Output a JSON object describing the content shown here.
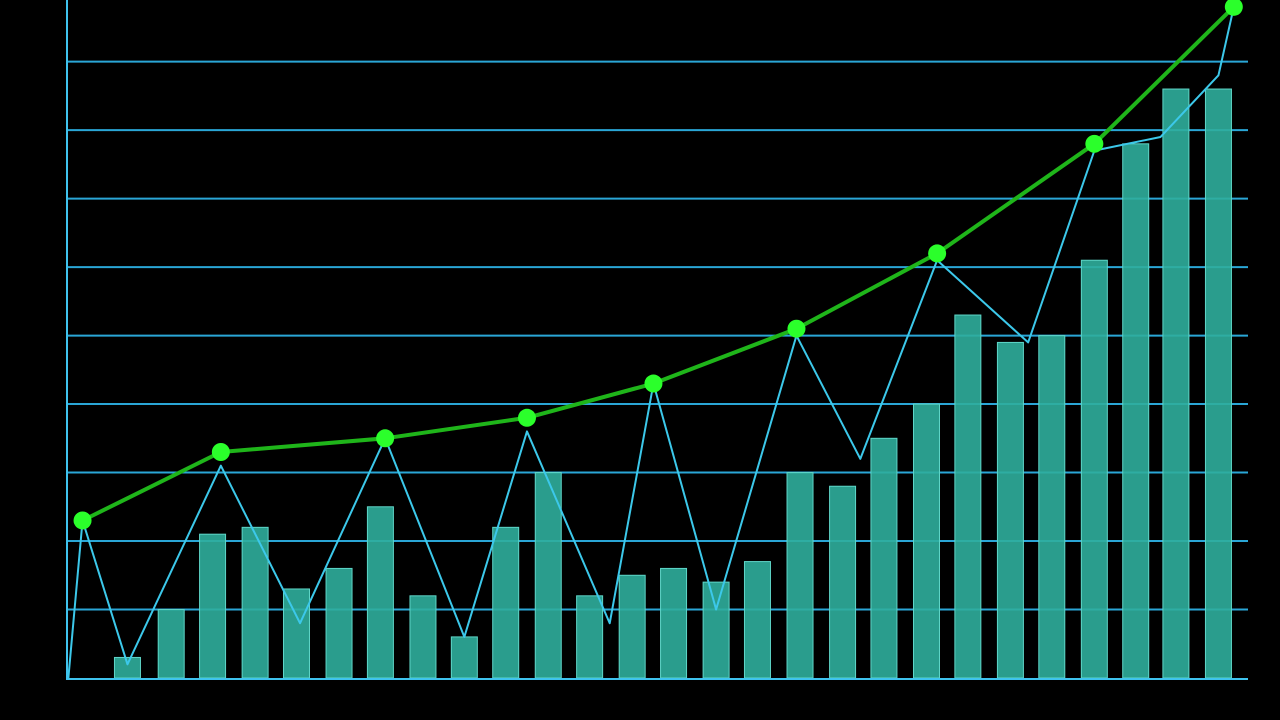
{
  "chart_data": [
    {
      "type": "bar",
      "x": [
        5.2,
        8.9,
        12.4,
        16.0,
        19.5,
        23.1,
        26.6,
        30.2,
        33.7,
        37.2,
        40.8,
        44.3,
        47.9,
        51.4,
        55.0,
        58.5,
        62.1,
        65.7,
        69.2,
        72.8,
        76.3,
        79.9,
        83.4,
        87.0,
        90.5,
        93.9,
        97.5
      ],
      "values": [
        0.3,
        1.0,
        2.1,
        2.2,
        1.3,
        1.6,
        2.5,
        1.2,
        0.6,
        2.2,
        3.0,
        1.2,
        1.5,
        1.6,
        1.4,
        1.7,
        3.0,
        2.8,
        3.5,
        4.0,
        5.3,
        4.9,
        5.0,
        6.1,
        7.8,
        8.6,
        8.6
      ],
      "color": "#2fae9c",
      "xlim": [
        0,
        100
      ],
      "ylim": [
        0,
        9.9
      ],
      "yticks": [
        1,
        2,
        3,
        4,
        5,
        6,
        7,
        8,
        9
      ],
      "grid": true,
      "grid_color": "#2aa6d6"
    },
    {
      "type": "line",
      "x": [
        0.2,
        1.4,
        5.2,
        13.1,
        19.8,
        27.0,
        33.7,
        39.0,
        46.0,
        49.7,
        55.0,
        61.8,
        67.2,
        73.7,
        81.4,
        87.0,
        92.6,
        97.5,
        98.8
      ],
      "values": [
        0,
        2.3,
        0.2,
        3.1,
        0.8,
        3.5,
        0.6,
        3.6,
        0.8,
        4.3,
        1.0,
        5.0,
        3.2,
        6.1,
        4.9,
        7.7,
        7.9,
        8.8,
        9.8
      ],
      "color": "#3cc8ea",
      "markers": false,
      "xlim": [
        0,
        100
      ],
      "ylim": [
        0,
        9.9
      ]
    },
    {
      "type": "line",
      "x": [
        1.4,
        13.1,
        27.0,
        39.0,
        49.7,
        61.8,
        73.7,
        87.0,
        98.8
      ],
      "values": [
        2.3,
        3.3,
        3.5,
        3.8,
        4.3,
        5.1,
        6.2,
        7.8,
        9.8
      ],
      "color": "#1fb51a",
      "marker_color": "#2bff2b",
      "markers": true,
      "xlim": [
        0,
        100
      ],
      "ylim": [
        0,
        9.9
      ]
    }
  ]
}
